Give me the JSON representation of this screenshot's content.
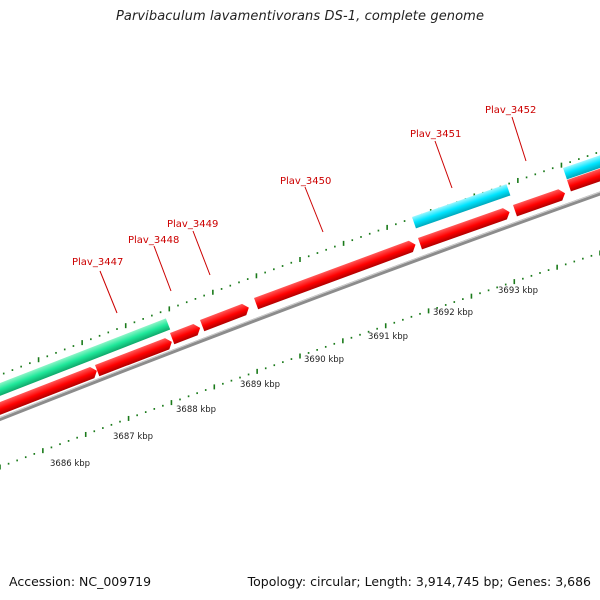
{
  "title": "Parvibaculum lavamentivorans DS-1, complete genome",
  "footer": {
    "accession": "Accession: NC_009719",
    "stats": "Topology: circular; Length: 3,914,745 bp; Genes: 3,686"
  },
  "colors": {
    "cds": "#ff0000",
    "rna_cyan": "#00e5ff",
    "rna_green": "#1fe89a",
    "backbone": "#888888",
    "tick": "#1a7a1a",
    "label": "#cc0000"
  },
  "scale_labels": [
    "3686 kbp",
    "3687 kbp",
    "3688 kbp",
    "3689 kbp",
    "3690 kbp",
    "3691 kbp",
    "3692 kbp",
    "3693 kbp"
  ],
  "gene_labels": [
    "Plav_3447",
    "Plav_3448",
    "Plav_3449",
    "Plav_3450",
    "Plav_3451",
    "Plav_3452"
  ]
}
